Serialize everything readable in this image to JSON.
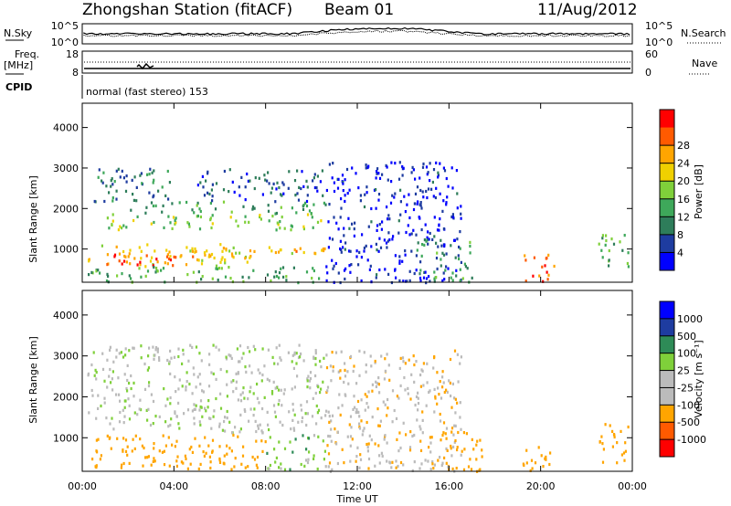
{
  "header": {
    "title": "Zhongshan Station (fitACF)",
    "beam": "Beam 01",
    "date": "11/Aug/2012"
  },
  "top_panels": {
    "nsky_label": "N.Sky",
    "nsky_ticks": [
      "10^5",
      "10^0"
    ],
    "nsearch_label": "N.Search",
    "freq_label": "Freq.",
    "freq_unit": "[MHz]",
    "freq_ticks": [
      "18",
      "8"
    ],
    "nave_ticks": [
      "60",
      "0"
    ],
    "nave_label": "Nave",
    "cpid_label": "CPID",
    "cpid_value": "normal (fast stereo) 153"
  },
  "colors": {
    "power_scale": [
      "#0000ff",
      "#1e3ca0",
      "#2e7d5a",
      "#3ea85a",
      "#7fd03a",
      "#f0d000",
      "#ffa500",
      "#ff5a00",
      "#ff0000"
    ],
    "velocity_scale": [
      "#ff0000",
      "#ff5a00",
      "#ffa500",
      "#bbbbbb",
      "#bbbbbb",
      "#7fd03a",
      "#2e8b57",
      "#1e3ca0",
      "#0000ff"
    ]
  },
  "chart_data": [
    {
      "type": "heatmap",
      "name": "power",
      "xlabel": "Time UT",
      "ylabel": "Slant Range [km]",
      "x_ticks": [
        "00:00",
        "04:00",
        "08:00",
        "12:00",
        "16:00",
        "20:00",
        "00:00"
      ],
      "x_range_hours": [
        0,
        24
      ],
      "y_ticks": [
        "1000",
        "2000",
        "3000",
        "4000"
      ],
      "ylim": [
        180,
        4600
      ],
      "colorbar": {
        "label": "Power [dB]",
        "ticks": [
          "4",
          "8",
          "12",
          "16",
          "20",
          "24",
          "28"
        ],
        "range": [
          0,
          30
        ]
      },
      "regions": [
        {
          "t0": 0.2,
          "t1": 7.5,
          "r0": 600,
          "r1": 1150,
          "v": 19
        },
        {
          "t0": 0.3,
          "t1": 4.0,
          "r0": 620,
          "r1": 900,
          "v": 26
        },
        {
          "t0": 4.0,
          "t1": 10.6,
          "r0": 800,
          "r1": 1100,
          "v": 20
        },
        {
          "t0": 1.0,
          "t1": 10.6,
          "r0": 1500,
          "r1": 1900,
          "v": 15
        },
        {
          "t0": 2.0,
          "t1": 10.6,
          "r0": 1900,
          "r1": 2200,
          "v": 10
        },
        {
          "t0": 0.5,
          "t1": 4.0,
          "r0": 2200,
          "r1": 3100,
          "v": 8
        },
        {
          "t0": 5.0,
          "t1": 10.6,
          "r0": 2200,
          "r1": 3000,
          "v": 6
        },
        {
          "t0": 0.2,
          "t1": 10.6,
          "r0": 200,
          "r1": 600,
          "v": 12
        },
        {
          "t0": 10.6,
          "t1": 16.5,
          "r0": 200,
          "r1": 3200,
          "v": 3
        },
        {
          "t0": 14.5,
          "t1": 17.0,
          "r0": 200,
          "r1": 1300,
          "v": 10
        },
        {
          "t0": 19.2,
          "t1": 20.6,
          "r0": 200,
          "r1": 900,
          "v": 24
        },
        {
          "t0": 22.5,
          "t1": 23.8,
          "r0": 500,
          "r1": 1400,
          "v": 12
        }
      ]
    },
    {
      "type": "heatmap",
      "name": "velocity",
      "xlabel": "Time UT",
      "ylabel": "Slant Range [km]",
      "x_ticks": [
        "00:00",
        "04:00",
        "08:00",
        "12:00",
        "16:00",
        "20:00",
        "00:00"
      ],
      "x_range_hours": [
        0,
        24
      ],
      "y_ticks": [
        "1000",
        "2000",
        "3000",
        "4000"
      ],
      "ylim": [
        180,
        4600
      ],
      "colorbar": {
        "label": "Velocity [m s⁻¹]",
        "ticks": [
          "1000",
          "500",
          "100",
          "25",
          "-25",
          "-100",
          "-500",
          "-1000"
        ]
      },
      "regions": [
        {
          "t0": 0.2,
          "t1": 10.6,
          "r0": 1150,
          "r1": 3300,
          "v": 0
        },
        {
          "t0": 0.2,
          "t1": 8.0,
          "r0": 250,
          "r1": 1100,
          "v": -200
        },
        {
          "t0": 8.0,
          "t1": 10.6,
          "r0": 250,
          "r1": 1100,
          "v": 60
        },
        {
          "t0": 10.6,
          "t1": 16.5,
          "r0": 200,
          "r1": 3200,
          "v": -80
        },
        {
          "t0": 15.5,
          "t1": 17.5,
          "r0": 200,
          "r1": 1200,
          "v": -300
        },
        {
          "t0": 19.2,
          "t1": 20.6,
          "r0": 200,
          "r1": 900,
          "v": -200
        },
        {
          "t0": 22.5,
          "t1": 23.8,
          "r0": 400,
          "r1": 1400,
          "v": -300
        }
      ]
    }
  ]
}
